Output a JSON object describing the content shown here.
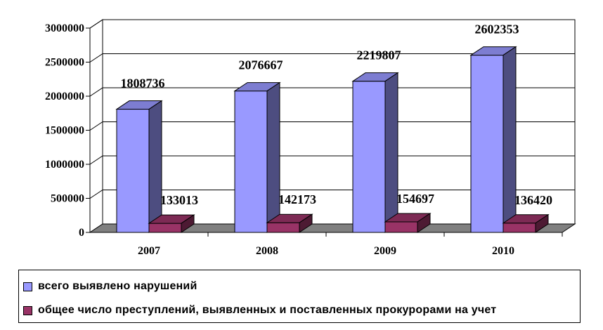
{
  "chart_data": {
    "type": "bar",
    "categories": [
      "2007",
      "2008",
      "2009",
      "2010"
    ],
    "series": [
      {
        "name": "всего выявлено нарушений",
        "values": [
          1808736,
          2076667,
          2219807,
          2602353
        ],
        "color": "#9999ff"
      },
      {
        "name": "общее число преступлений, выявленных и поставленных прокурорами на учет",
        "values": [
          133013,
          142173,
          154697,
          136420
        ],
        "color": "#993366"
      }
    ],
    "y_ticks": [
      "0",
      "500000",
      "1000000",
      "1500000",
      "2000000",
      "2500000",
      "3000000"
    ],
    "ylim": [
      0,
      3000000
    ],
    "grid": true,
    "legend_position": "bottom",
    "three_d": true
  }
}
